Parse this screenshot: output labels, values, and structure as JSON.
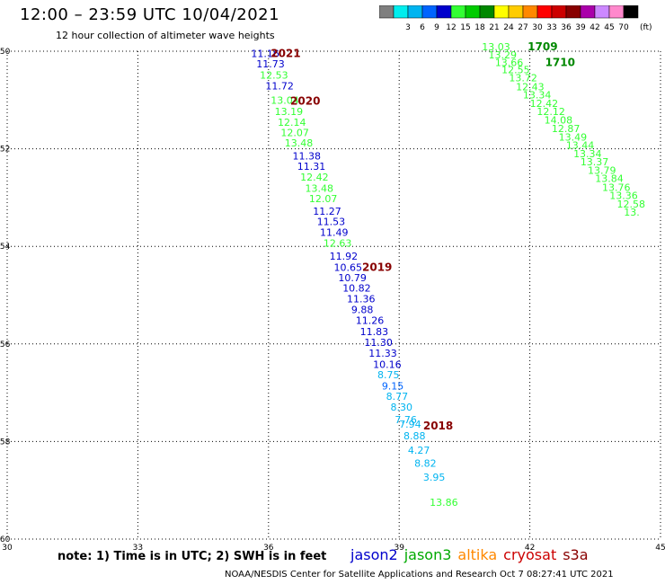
{
  "header": {
    "title": "12:00 – 23:59 UTC 10/04/2021",
    "subtitle": "12 hour collection of altimeter wave heights"
  },
  "color_scale": {
    "bins": [
      {
        "label": "",
        "color": "#7f7f7f"
      },
      {
        "label": "3",
        "color": "#00eeee"
      },
      {
        "label": "6",
        "color": "#00b4f0"
      },
      {
        "label": "9",
        "color": "#0064ff"
      },
      {
        "label": "12",
        "color": "#0000cc"
      },
      {
        "label": "15",
        "color": "#33ff33"
      },
      {
        "label": "18",
        "color": "#00cc00"
      },
      {
        "label": "21",
        "color": "#008800"
      },
      {
        "label": "24",
        "color": "#ffff00"
      },
      {
        "label": "27",
        "color": "#ffcc00"
      },
      {
        "label": "30",
        "color": "#ff8800"
      },
      {
        "label": "33",
        "color": "#ff0000"
      },
      {
        "label": "36",
        "color": "#cc0000"
      },
      {
        "label": "39",
        "color": "#880000"
      },
      {
        "label": "42",
        "color": "#aa00aa"
      },
      {
        "label": "45",
        "color": "#cc88ff"
      },
      {
        "label": "70",
        "color": "#ff88cc"
      },
      {
        "label": "",
        "color": "#000000"
      }
    ],
    "unit": "(ft)"
  },
  "axes": {
    "x_ticks": [
      "30",
      "33",
      "36",
      "39",
      "42",
      "45"
    ],
    "y_ticks": [
      "-50",
      "-52",
      "-54",
      "-56",
      "-58",
      "-60"
    ]
  },
  "chart_data": {
    "type": "scatter",
    "x_range": [
      30,
      45
    ],
    "y_range": [
      -60,
      -50
    ],
    "points": [
      {
        "x": 35.6,
        "y": -50.12,
        "v": "11.16",
        "c": "#0000cc"
      },
      {
        "x": 35.72,
        "y": -50.33,
        "v": "11.73",
        "c": "#0000cc"
      },
      {
        "x": 35.8,
        "y": -50.56,
        "v": "12.53",
        "c": "#33ff33"
      },
      {
        "x": 35.93,
        "y": -50.78,
        "v": "11.72",
        "c": "#0000cc"
      },
      {
        "x": 36.05,
        "y": -51.08,
        "v": "13.04",
        "c": "#33ff33"
      },
      {
        "x": 36.14,
        "y": -51.31,
        "v": "13.19",
        "c": "#33ff33"
      },
      {
        "x": 36.21,
        "y": -51.53,
        "v": "12.14",
        "c": "#33ff33"
      },
      {
        "x": 36.28,
        "y": -51.74,
        "v": "12.07",
        "c": "#33ff33"
      },
      {
        "x": 36.37,
        "y": -51.95,
        "v": "13.48",
        "c": "#33ff33"
      },
      {
        "x": 36.55,
        "y": -52.22,
        "v": "11.38",
        "c": "#0000cc"
      },
      {
        "x": 36.66,
        "y": -52.43,
        "v": "11.31",
        "c": "#0000cc"
      },
      {
        "x": 36.73,
        "y": -52.65,
        "v": "12.42",
        "c": "#33ff33"
      },
      {
        "x": 36.84,
        "y": -52.88,
        "v": "13.48",
        "c": "#33ff33"
      },
      {
        "x": 36.93,
        "y": -53.09,
        "v": "12.07",
        "c": "#33ff33"
      },
      {
        "x": 37.02,
        "y": -53.35,
        "v": "11.27",
        "c": "#0000cc"
      },
      {
        "x": 37.11,
        "y": -53.56,
        "v": "11.53",
        "c": "#0000cc"
      },
      {
        "x": 37.18,
        "y": -53.78,
        "v": "11.49",
        "c": "#0000cc"
      },
      {
        "x": 37.26,
        "y": -54.01,
        "v": "12.63",
        "c": "#33ff33"
      },
      {
        "x": 37.4,
        "y": -54.27,
        "v": "11.92",
        "c": "#0000cc"
      },
      {
        "x": 37.5,
        "y": -54.5,
        "v": "10.65",
        "c": "#0000cc"
      },
      {
        "x": 37.6,
        "y": -54.71,
        "v": "10.79",
        "c": "#0000cc"
      },
      {
        "x": 37.7,
        "y": -54.93,
        "v": "10.82",
        "c": "#0000cc"
      },
      {
        "x": 37.8,
        "y": -55.15,
        "v": "11.36",
        "c": "#0000cc"
      },
      {
        "x": 37.9,
        "y": -55.37,
        "v": "9.88",
        "c": "#0000cc"
      },
      {
        "x": 38.0,
        "y": -55.59,
        "v": "11.26",
        "c": "#0000cc"
      },
      {
        "x": 38.1,
        "y": -55.82,
        "v": "11.83",
        "c": "#0000cc"
      },
      {
        "x": 38.2,
        "y": -56.04,
        "v": "11.30",
        "c": "#0000cc"
      },
      {
        "x": 38.3,
        "y": -56.26,
        "v": "11.33",
        "c": "#0000cc"
      },
      {
        "x": 38.4,
        "y": -56.49,
        "v": "10.16",
        "c": "#0000cc"
      },
      {
        "x": 38.5,
        "y": -56.7,
        "v": "8.75",
        "c": "#00b4f0"
      },
      {
        "x": 38.6,
        "y": -56.93,
        "v": "9.15",
        "c": "#0064ff"
      },
      {
        "x": 38.7,
        "y": -57.15,
        "v": "8.77",
        "c": "#00b4f0"
      },
      {
        "x": 38.8,
        "y": -57.37,
        "v": "8.30",
        "c": "#00b4f0"
      },
      {
        "x": 38.9,
        "y": -57.62,
        "v": "7.76",
        "c": "#00b4f0"
      },
      {
        "x": 39.0,
        "y": -57.72,
        "v": "7.94",
        "c": "#00b4f0"
      },
      {
        "x": 39.1,
        "y": -57.96,
        "v": "8.88",
        "c": "#00b4f0"
      },
      {
        "x": 39.2,
        "y": -58.25,
        "v": "4.27",
        "c": "#00b4f0"
      },
      {
        "x": 39.35,
        "y": -58.52,
        "v": "8.82",
        "c": "#00b4f0"
      },
      {
        "x": 39.55,
        "y": -58.8,
        "v": "3.95",
        "c": "#00b4f0"
      },
      {
        "x": 39.7,
        "y": -59.32,
        "v": "13.86",
        "c": "#33ff33"
      },
      {
        "x": 40.9,
        "y": -49.98,
        "v": "13.03",
        "c": "#33ff33"
      },
      {
        "x": 41.05,
        "y": -50.15,
        "v": "13.29",
        "c": "#33ff33"
      },
      {
        "x": 41.2,
        "y": -50.3,
        "v": "13.66",
        "c": "#33ff33"
      },
      {
        "x": 41.35,
        "y": -50.45,
        "v": "12.55",
        "c": "#33ff33"
      },
      {
        "x": 41.52,
        "y": -50.62,
        "v": "13.72",
        "c": "#33ff33"
      },
      {
        "x": 41.68,
        "y": -50.8,
        "v": "12.43",
        "c": "#33ff33"
      },
      {
        "x": 41.84,
        "y": -50.97,
        "v": "13.34",
        "c": "#33ff33"
      },
      {
        "x": 42.0,
        "y": -51.14,
        "v": "12.42",
        "c": "#33ff33"
      },
      {
        "x": 42.16,
        "y": -51.31,
        "v": "12.12",
        "c": "#33ff33"
      },
      {
        "x": 42.33,
        "y": -51.48,
        "v": "14.08",
        "c": "#33ff33"
      },
      {
        "x": 42.5,
        "y": -51.66,
        "v": "12.87",
        "c": "#33ff33"
      },
      {
        "x": 42.66,
        "y": -51.83,
        "v": "13.49",
        "c": "#33ff33"
      },
      {
        "x": 42.83,
        "y": -52.0,
        "v": "13.44",
        "c": "#33ff33"
      },
      {
        "x": 43.0,
        "y": -52.17,
        "v": "13.34",
        "c": "#33ff33"
      },
      {
        "x": 43.16,
        "y": -52.34,
        "v": "13.37",
        "c": "#33ff33"
      },
      {
        "x": 43.33,
        "y": -52.51,
        "v": "13.79",
        "c": "#33ff33"
      },
      {
        "x": 43.5,
        "y": -52.68,
        "v": "13.84",
        "c": "#33ff33"
      },
      {
        "x": 43.66,
        "y": -52.86,
        "v": "13.76",
        "c": "#33ff33"
      },
      {
        "x": 43.83,
        "y": -53.03,
        "v": "13.36",
        "c": "#33ff33"
      },
      {
        "x": 44.0,
        "y": -53.2,
        "v": "12.58",
        "c": "#33ff33"
      },
      {
        "x": 44.16,
        "y": -53.37,
        "v": "13.",
        "c": "#33ff33"
      }
    ],
    "time_labels": [
      {
        "x": 36.05,
        "y": -50.12,
        "v": "2021",
        "c": "#880000"
      },
      {
        "x": 36.5,
        "y": -51.1,
        "v": "2020",
        "c": "#880000"
      },
      {
        "x": 38.15,
        "y": -54.5,
        "v": "2019",
        "c": "#880000"
      },
      {
        "x": 39.55,
        "y": -57.75,
        "v": "2018",
        "c": "#880000"
      },
      {
        "x": 41.95,
        "y": -49.98,
        "v": "1709",
        "c": "#008800"
      },
      {
        "x": 42.35,
        "y": -50.3,
        "v": "1710",
        "c": "#008800"
      }
    ]
  },
  "legend": {
    "items": [
      {
        "label": "jason2",
        "color": "#0000cc"
      },
      {
        "label": "jason3",
        "color": "#00aa00"
      },
      {
        "label": "altika",
        "color": "#ff8800"
      },
      {
        "label": "cryosat",
        "color": "#cc0000"
      },
      {
        "label": "s3a",
        "color": "#880000"
      }
    ]
  },
  "footer": {
    "note": "note: 1) Time is in UTC; 2) SWH is in feet",
    "credit": "NOAA/NESDIS Center for Satellite Applications and Research     Oct  7 08:27:41 UTC 2021"
  }
}
